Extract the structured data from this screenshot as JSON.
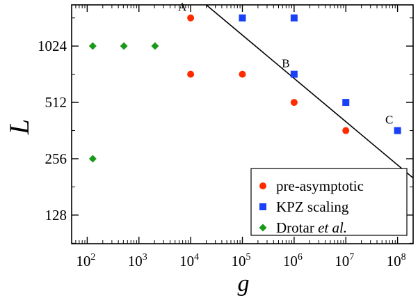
{
  "chart_data": {
    "type": "scatter",
    "xlabel": "g",
    "ylabel": "L",
    "xscale": "log",
    "yscale": "log",
    "xlim": [
      50,
      200000000
    ],
    "ylim": [
      90,
      1700
    ],
    "x_ticks": [
      {
        "value": 100,
        "base": "10",
        "exp": "2"
      },
      {
        "value": 1000,
        "base": "10",
        "exp": "3"
      },
      {
        "value": 10000,
        "base": "10",
        "exp": "4"
      },
      {
        "value": 100000,
        "base": "10",
        "exp": "5"
      },
      {
        "value": 1000000,
        "base": "10",
        "exp": "6"
      },
      {
        "value": 10000000,
        "base": "10",
        "exp": "7"
      },
      {
        "value": 100000000,
        "base": "10",
        "exp": "8"
      }
    ],
    "y_ticks": [
      {
        "value": 128,
        "label": "128"
      },
      {
        "value": 256,
        "label": "256"
      },
      {
        "value": 512,
        "label": "512"
      },
      {
        "value": 1024,
        "label": "1024"
      }
    ],
    "series": [
      {
        "name": "pre-asymptotic",
        "marker": "circle",
        "color": "#ff2a00",
        "points": [
          {
            "x": 10000,
            "y": 1448
          },
          {
            "x": 10000,
            "y": 724
          },
          {
            "x": 100000,
            "y": 724
          },
          {
            "x": 1000000,
            "y": 512
          },
          {
            "x": 10000000,
            "y": 362
          }
        ]
      },
      {
        "name": "KPZ scaling",
        "marker": "square",
        "color": "#1a41f5",
        "points": [
          {
            "x": 100000,
            "y": 1448
          },
          {
            "x": 1000000,
            "y": 1448
          },
          {
            "x": 1000000,
            "y": 724
          },
          {
            "x": 10000000,
            "y": 512
          },
          {
            "x": 100000000,
            "y": 362
          }
        ]
      },
      {
        "name": "Drotar",
        "name_suffix": "et al.",
        "marker": "diamond",
        "color": "#1a9a1a",
        "points": [
          {
            "x": 128,
            "y": 1024
          },
          {
            "x": 512,
            "y": 1024
          },
          {
            "x": 2048,
            "y": 1024
          },
          {
            "x": 128,
            "y": 256
          }
        ]
      }
    ],
    "fit_line": {
      "x": [
        20000,
        200000000
      ],
      "y": [
        1700,
        202
      ],
      "color": "#000000"
    },
    "annotations": [
      {
        "text": "A",
        "x": 10000,
        "y": 1448
      },
      {
        "text": "B",
        "x": 1000000,
        "y": 724
      },
      {
        "text": "C",
        "x": 100000000,
        "y": 362
      }
    ],
    "legend_position": "bottom-right",
    "grid": false
  }
}
